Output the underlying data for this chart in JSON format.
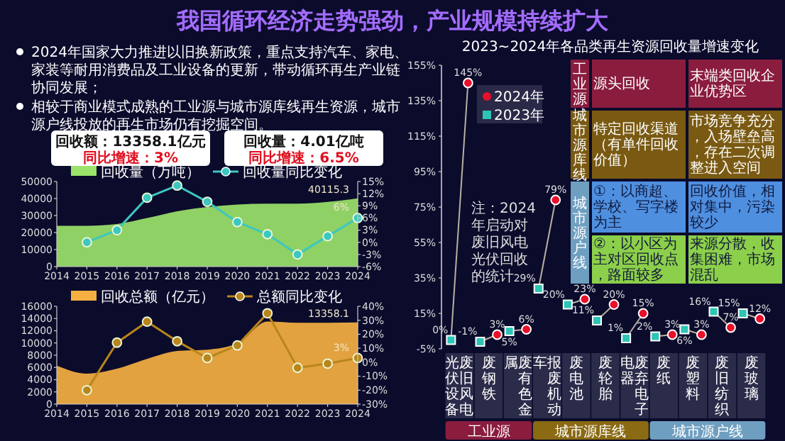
{
  "chart_data": [
    {
      "type": "other",
      "title": "我国循环经济走势强劲，产业规模持续扩大",
      "annotations": [
        "2024年国家大力推进以旧换新政策，重点支持汽车、家电、家装等耐用消费品及工业设备的更新，带动循环再生产业链协同发展；",
        "相较于商业模式成熟的工业源与城市源库线再生资源，城市源户线投放的再生市场仍有挖掘空间。",
        "回收额：13358.1亿元",
        "同比增速：3%",
        "回收量：4.01亿吨",
        "同比增速：6.5%"
      ]
    },
    {
      "type": "area",
      "x": [
        2014,
        2015,
        2016,
        2017,
        2018,
        2019,
        2020,
        2021,
        2022,
        2023,
        2024
      ],
      "xlim": [
        2014,
        2024
      ],
      "xticks": [
        2014,
        2015,
        2016,
        2017,
        2018,
        2019,
        2020,
        2021,
        2022,
        2023,
        2024
      ],
      "ylim": [
        0,
        50000
      ],
      "yticks": [
        0,
        10000,
        20000,
        30000,
        40000,
        50000
      ],
      "y2lim": [
        -6,
        15
      ],
      "y2ticks": [
        {
          "value": -6,
          "label": "-6%"
        },
        {
          "value": -3,
          "label": "-3%"
        },
        {
          "value": 0,
          "label": "0%"
        },
        {
          "value": 3,
          "label": "3%"
        },
        {
          "value": 6,
          "label": "6%"
        },
        {
          "value": 9,
          "label": "9%"
        },
        {
          "value": 12,
          "label": "12%"
        },
        {
          "value": 15,
          "label": "15%"
        }
      ],
      "legend": "top left",
      "series": [
        {
          "name": "回收量（万吨）",
          "type": "area",
          "color": "#9be36a",
          "values": [
            24000,
            24000,
            25000,
            28500,
            32500,
            35000,
            36500,
            37000,
            37000,
            38000,
            40115.3
          ],
          "value_labels": [
            null,
            null,
            null,
            null,
            null,
            null,
            null,
            null,
            null,
            null,
            "40115.3"
          ]
        },
        {
          "name": "回收量同比变化",
          "type": "line",
          "axis": "y2",
          "marker": "circle",
          "color": "#3cc7c0",
          "values": [
            null,
            0,
            3,
            11,
            14,
            10,
            5,
            2,
            -3,
            1.5,
            6
          ],
          "value_labels": [
            null,
            null,
            null,
            null,
            null,
            null,
            null,
            null,
            null,
            null,
            "6%"
          ]
        }
      ]
    },
    {
      "type": "area",
      "x": [
        2014,
        2015,
        2016,
        2017,
        2018,
        2019,
        2020,
        2021,
        2022,
        2023,
        2024
      ],
      "xlim": [
        2014,
        2024
      ],
      "xticks": [
        2014,
        2015,
        2016,
        2017,
        2018,
        2019,
        2020,
        2021,
        2022,
        2023,
        2024
      ],
      "ylim": [
        0,
        16000
      ],
      "yticks": [
        0,
        2000,
        4000,
        6000,
        8000,
        10000,
        12000,
        14000,
        16000
      ],
      "y2lim": [
        -30,
        40
      ],
      "y2ticks": [
        {
          "value": -30,
          "label": "-30%"
        },
        {
          "value": -20,
          "label": "-20%"
        },
        {
          "value": -10,
          "label": "-10%"
        },
        {
          "value": 0,
          "label": "0%"
        },
        {
          "value": 10,
          "label": "10%"
        },
        {
          "value": 20,
          "label": "20%"
        },
        {
          "value": 30,
          "label": "30%"
        },
        {
          "value": 40,
          "label": "40%"
        }
      ],
      "legend": "top left",
      "series": [
        {
          "name": "回收总额（亿元）",
          "type": "area",
          "color": "#f5b041",
          "values": [
            6300,
            5000,
            5800,
            7400,
            8700,
            8900,
            9900,
            13500,
            13300,
            13300,
            13358.1
          ],
          "value_labels": [
            null,
            null,
            null,
            null,
            null,
            null,
            null,
            null,
            null,
            null,
            "13358.1"
          ]
        },
        {
          "name": "总额同比变化",
          "type": "line",
          "axis": "y2",
          "marker": "circle",
          "color": "#b8861b",
          "values": [
            null,
            -20,
            14,
            29,
            15,
            3,
            12,
            35,
            -4,
            -1,
            3
          ],
          "value_labels": [
            null,
            null,
            null,
            null,
            null,
            null,
            null,
            null,
            null,
            null,
            "3%"
          ]
        }
      ]
    },
    {
      "type": "scatter",
      "title": "2023~2024年各品类再生资源回收量增速变化",
      "categories": [
        "废旧风电光伏设备",
        "废钢铁",
        "废有色金属",
        "报废机动车",
        "废电池",
        "废轮胎",
        "废弃电子电器",
        "废纸",
        "废塑料",
        "废旧纺织",
        "废玻璃"
      ],
      "ylim": [
        -5,
        155
      ],
      "yticks": [
        {
          "value": -5,
          "label": "-5%"
        },
        {
          "value": 15,
          "label": "15%"
        },
        {
          "value": 35,
          "label": "35%"
        },
        {
          "value": 55,
          "label": "55%"
        },
        {
          "value": 75,
          "label": "75%"
        },
        {
          "value": 95,
          "label": "95%"
        },
        {
          "value": 115,
          "label": "115%"
        },
        {
          "value": 135,
          "label": "135%"
        },
        {
          "value": 155,
          "label": "155%"
        }
      ],
      "legend": "top left",
      "annotations": [
        "注：2024年启动对废旧风电光伏回收的统计",
        "工业源",
        "城市源库线",
        "城市源户线"
      ],
      "series": [
        {
          "name": "2024年",
          "color": "#e8102a",
          "marker": "circle",
          "values": [
            145,
            3,
            6,
            79,
            23,
            20,
            15,
            3,
            3,
            7,
            12
          ],
          "value_labels": [
            "145%",
            "3%",
            "6%",
            "79%",
            "23%",
            "20%",
            "15%",
            "3%",
            "3%",
            "7%",
            "12%"
          ]
        },
        {
          "name": "2023年",
          "color": "#2ec4b6",
          "marker": "square",
          "values": [
            0,
            -1,
            5,
            29,
            20,
            11,
            1,
            2,
            6,
            16,
            15
          ],
          "value_labels": [
            "0%",
            "-1%",
            "5%",
            "29%",
            "20%",
            "11%",
            "1%",
            "2%",
            "6%",
            "16%",
            "15%"
          ]
        }
      ]
    },
    {
      "type": "other",
      "annotations": [
        "工业源",
        "源头回收",
        "末端类回收企业优势区",
        "城市源库线",
        "特定回收渠道（有单件回收价值）",
        "市场竞争充分，入场壁垒高，存在二次调整进入空间",
        "城市源户线",
        "①：以商超、学校、写字楼为主",
        "回收价值，相对集中，污染较少",
        "②：以小区为主对区回收点，路面较多",
        "来源分散，收集困难，市场混乱"
      ]
    }
  ]
}
